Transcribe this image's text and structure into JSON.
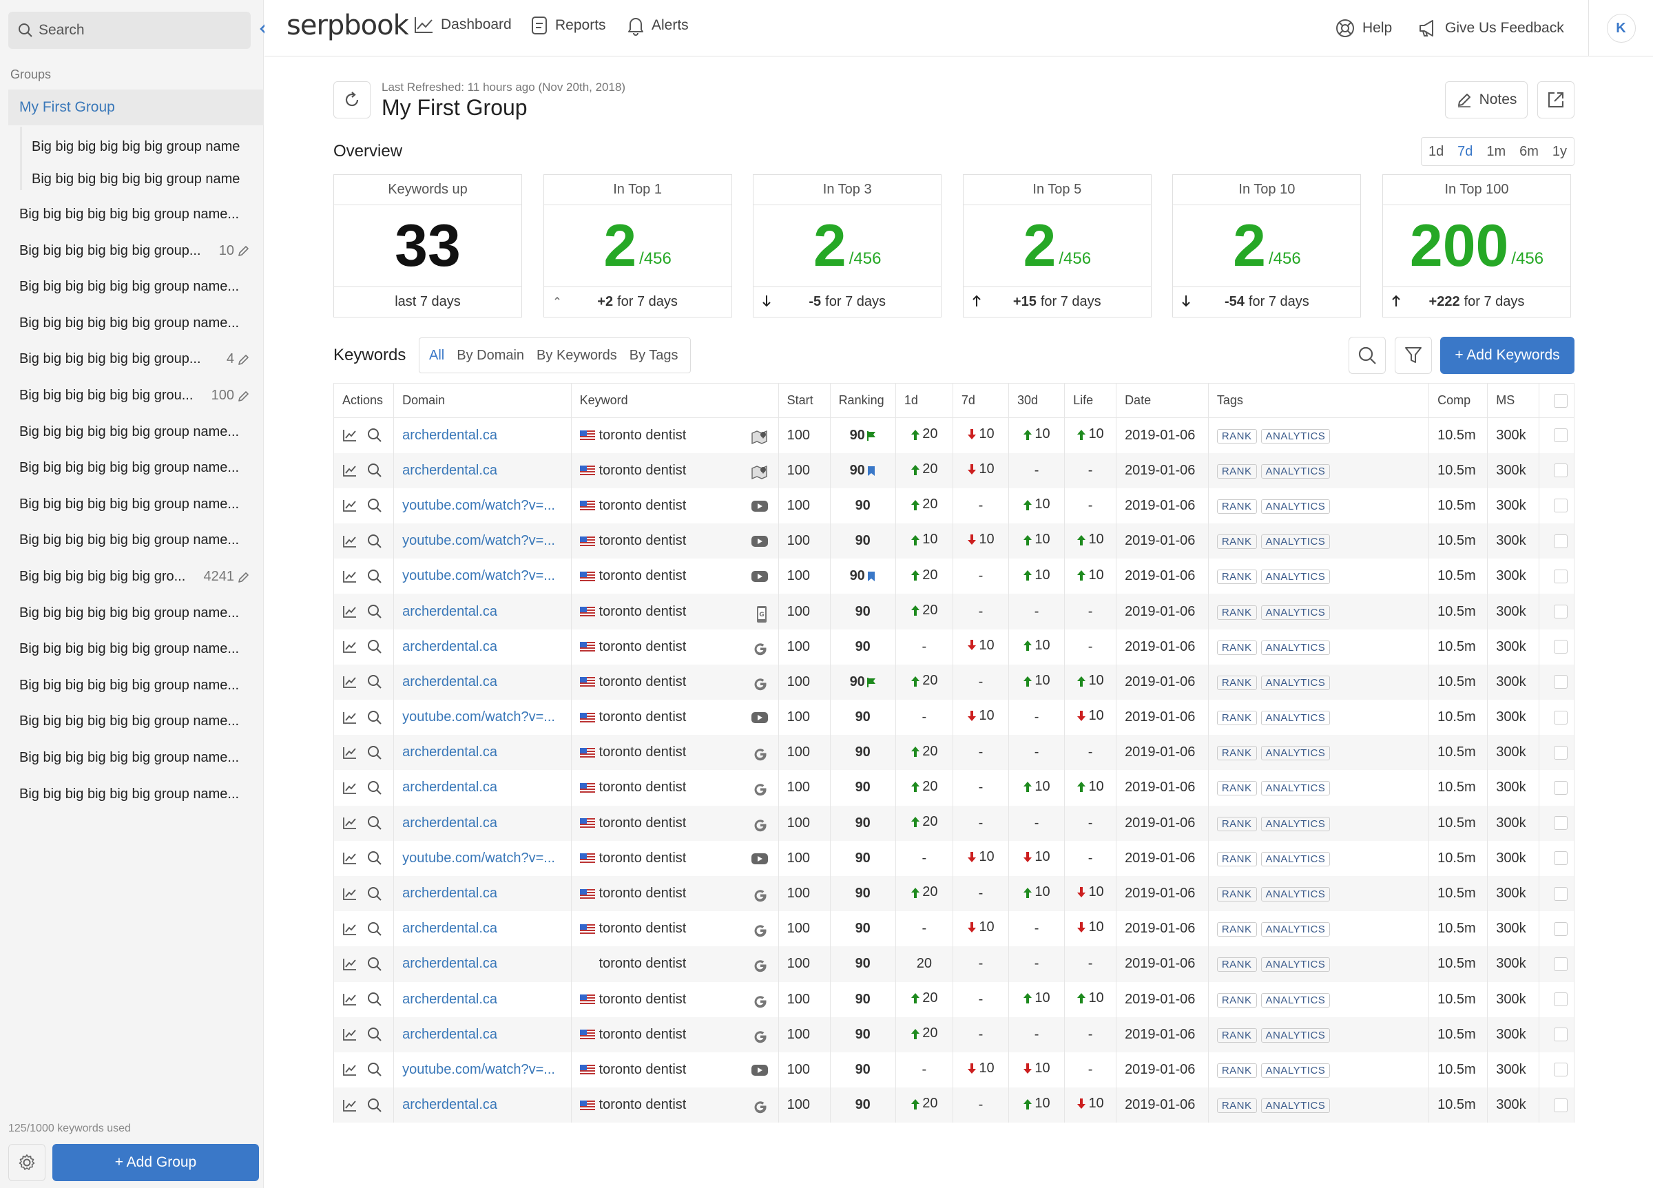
{
  "sidebar": {
    "search_placeholder": "Search",
    "groups_label": "Groups",
    "active_group": "My First Group",
    "sub_groups": [
      "Big big big big big big  group name",
      "Big big big big big big  group name"
    ],
    "groups": [
      {
        "label": "Big big big big big big  group name...",
        "count": ""
      },
      {
        "label": "Big big big big big big  group...",
        "count": "10"
      },
      {
        "label": "Big big big big big big  group name...",
        "count": ""
      },
      {
        "label": "Big big big big big big  group name...",
        "count": ""
      },
      {
        "label": "Big big big big big big  group...",
        "count": "4"
      },
      {
        "label": "Big big big big big big  grou...",
        "count": "100"
      },
      {
        "label": "Big big big big big big  group name...",
        "count": ""
      },
      {
        "label": "Big big big big big big  group name...",
        "count": ""
      },
      {
        "label": "Big big big big big big  group name...",
        "count": ""
      },
      {
        "label": "Big big big big big big  group name...",
        "count": ""
      },
      {
        "label": "Big big big big big big  gro...",
        "count": "4241"
      },
      {
        "label": "Big big big big big big  group name...",
        "count": ""
      },
      {
        "label": "Big big big big big big  group name...",
        "count": ""
      },
      {
        "label": "Big big big big big big  group name...",
        "count": ""
      },
      {
        "label": "Big big big big big big  group name...",
        "count": ""
      },
      {
        "label": "Big big big big big big  group name...",
        "count": ""
      },
      {
        "label": "Big big big big big big  group name...",
        "count": ""
      }
    ],
    "usage": "125/1000 keywords used",
    "add_group": "+ Add Group"
  },
  "topbar": {
    "logo": "serpbook",
    "nav": [
      "Dashboard",
      "Reports",
      "Alerts"
    ],
    "help": "Help",
    "feedback": "Give Us Feedback",
    "avatar": "K"
  },
  "header": {
    "last_refreshed": "Last Refreshed: 11 hours ago (Nov 20th, 2018)",
    "title": "My First Group",
    "notes": "Notes"
  },
  "overview": {
    "label": "Overview",
    "ranges": [
      "1d",
      "7d",
      "1m",
      "6m",
      "1y"
    ],
    "active_range": "7d",
    "cards": [
      {
        "title": "Keywords up",
        "value": "33",
        "total": "",
        "delta": "",
        "footer": "last 7 days",
        "arrow": "none"
      },
      {
        "title": "In Top 1",
        "value": "2",
        "total": "/456",
        "delta": "+2",
        "footer": "for 7 days",
        "arrow": "tick"
      },
      {
        "title": "In Top 3",
        "value": "2",
        "total": "/456",
        "delta": "-5",
        "footer": "for 7 days",
        "arrow": "down"
      },
      {
        "title": "In Top 5",
        "value": "2",
        "total": "/456",
        "delta": "+15",
        "footer": "for 7 days",
        "arrow": "up"
      },
      {
        "title": "In Top 10",
        "value": "2",
        "total": "/456",
        "delta": "-54",
        "footer": "for 7 days",
        "arrow": "down"
      },
      {
        "title": "In Top 100",
        "value": "200",
        "total": "/456",
        "delta": "+222",
        "footer": "for 7 days",
        "arrow": "up"
      }
    ]
  },
  "keywords": {
    "label": "Keywords",
    "tabs": [
      "All",
      "By Domain",
      "By Keywords",
      "By Tags"
    ],
    "active_tab": "All",
    "add_button": "+ Add Keywords",
    "columns": [
      "Actions",
      "Domain",
      "Keyword",
      "Start",
      "Ranking",
      "1d",
      "7d",
      "30d",
      "Life",
      "Date",
      "Tags",
      "Comp",
      "MS"
    ],
    "tags": [
      "RANK",
      "ANALYTICS"
    ],
    "rows": [
      {
        "domain": "archerdental.ca",
        "kw": "toronto dentist",
        "flag": true,
        "icon": "map",
        "start": "100",
        "rank": "90",
        "rank_icon": "flag-green",
        "d1": "20",
        "d1d": "up",
        "d7": "10",
        "d7d": "down",
        "d30": "10",
        "d30d": "up",
        "life": "10",
        "lifed": "up",
        "date": "2019-01-06",
        "comp": "10.5m",
        "ms": "300k"
      },
      {
        "domain": "archerdental.ca",
        "kw": "toronto dentist",
        "flag": true,
        "icon": "map",
        "start": "100",
        "rank": "90",
        "rank_icon": "bookmark",
        "d1": "20",
        "d1d": "up",
        "d7": "10",
        "d7d": "down",
        "d30": "-",
        "d30d": "",
        "life": "-",
        "lifed": "",
        "date": "2019-01-06",
        "comp": "10.5m",
        "ms": "300k"
      },
      {
        "domain": "youtube.com/watch?v=...",
        "kw": "toronto dentist",
        "flag": true,
        "icon": "youtube",
        "start": "100",
        "rank": "90",
        "rank_icon": "",
        "d1": "20",
        "d1d": "up",
        "d7": "-",
        "d7d": "",
        "d30": "10",
        "d30d": "up",
        "life": "-",
        "lifed": "",
        "date": "2019-01-06",
        "comp": "10.5m",
        "ms": "300k"
      },
      {
        "domain": "youtube.com/watch?v=...",
        "kw": "toronto dentist",
        "flag": true,
        "icon": "youtube",
        "start": "100",
        "rank": "90",
        "rank_icon": "",
        "d1": "10",
        "d1d": "up",
        "d7": "10",
        "d7d": "down",
        "d30": "10",
        "d30d": "up",
        "life": "10",
        "lifed": "up",
        "date": "2019-01-06",
        "comp": "10.5m",
        "ms": "300k"
      },
      {
        "domain": "youtube.com/watch?v=...",
        "kw": "toronto dentist",
        "flag": true,
        "icon": "youtube",
        "start": "100",
        "rank": "90",
        "rank_icon": "bookmark",
        "d1": "20",
        "d1d": "up",
        "d7": "-",
        "d7d": "",
        "d30": "10",
        "d30d": "up",
        "life": "10",
        "lifed": "up",
        "date": "2019-01-06",
        "comp": "10.5m",
        "ms": "300k"
      },
      {
        "domain": "archerdental.ca",
        "kw": "toronto dentist",
        "flag": true,
        "icon": "mobile",
        "start": "100",
        "rank": "90",
        "rank_icon": "",
        "d1": "20",
        "d1d": "up",
        "d7": "-",
        "d7d": "",
        "d30": "-",
        "d30d": "",
        "life": "-",
        "lifed": "",
        "date": "2019-01-06",
        "comp": "10.5m",
        "ms": "300k"
      },
      {
        "domain": "archerdental.ca",
        "kw": "toronto dentist",
        "flag": true,
        "icon": "google",
        "start": "100",
        "rank": "90",
        "rank_icon": "",
        "d1": "-",
        "d1d": "",
        "d7": "10",
        "d7d": "down",
        "d30": "10",
        "d30d": "up",
        "life": "-",
        "lifed": "",
        "date": "2019-01-06",
        "comp": "10.5m",
        "ms": "300k"
      },
      {
        "domain": "archerdental.ca",
        "kw": "toronto dentist",
        "flag": true,
        "icon": "google",
        "start": "100",
        "rank": "90",
        "rank_icon": "flag-green",
        "d1": "20",
        "d1d": "up",
        "d7": "-",
        "d7d": "",
        "d30": "10",
        "d30d": "up",
        "life": "10",
        "lifed": "up",
        "date": "2019-01-06",
        "comp": "10.5m",
        "ms": "300k"
      },
      {
        "domain": "youtube.com/watch?v=...",
        "kw": "toronto dentist",
        "flag": true,
        "icon": "youtube",
        "start": "100",
        "rank": "90",
        "rank_icon": "",
        "d1": "-",
        "d1d": "",
        "d7": "10",
        "d7d": "down",
        "d30": "-",
        "d30d": "",
        "life": "10",
        "lifed": "down",
        "date": "2019-01-06",
        "comp": "10.5m",
        "ms": "300k"
      },
      {
        "domain": "archerdental.ca",
        "kw": "toronto dentist",
        "flag": true,
        "icon": "google",
        "start": "100",
        "rank": "90",
        "rank_icon": "",
        "d1": "20",
        "d1d": "up",
        "d7": "-",
        "d7d": "",
        "d30": "-",
        "d30d": "",
        "life": "-",
        "lifed": "",
        "date": "2019-01-06",
        "comp": "10.5m",
        "ms": "300k"
      },
      {
        "domain": "archerdental.ca",
        "kw": "toronto dentist",
        "flag": true,
        "icon": "google",
        "start": "100",
        "rank": "90",
        "rank_icon": "",
        "d1": "20",
        "d1d": "up",
        "d7": "-",
        "d7d": "",
        "d30": "10",
        "d30d": "up",
        "life": "10",
        "lifed": "up",
        "date": "2019-01-06",
        "comp": "10.5m",
        "ms": "300k"
      },
      {
        "domain": "archerdental.ca",
        "kw": "toronto dentist",
        "flag": true,
        "icon": "google",
        "start": "100",
        "rank": "90",
        "rank_icon": "",
        "d1": "20",
        "d1d": "up",
        "d7": "-",
        "d7d": "",
        "d30": "-",
        "d30d": "",
        "life": "-",
        "lifed": "",
        "date": "2019-01-06",
        "comp": "10.5m",
        "ms": "300k"
      },
      {
        "domain": "youtube.com/watch?v=...",
        "kw": "toronto dentist",
        "flag": true,
        "icon": "youtube",
        "start": "100",
        "rank": "90",
        "rank_icon": "",
        "d1": "-",
        "d1d": "",
        "d7": "10",
        "d7d": "down",
        "d30": "10",
        "d30d": "down",
        "life": "-",
        "lifed": "",
        "date": "2019-01-06",
        "comp": "10.5m",
        "ms": "300k"
      },
      {
        "domain": "archerdental.ca",
        "kw": "toronto dentist",
        "flag": true,
        "icon": "google",
        "start": "100",
        "rank": "90",
        "rank_icon": "",
        "d1": "20",
        "d1d": "up",
        "d7": "-",
        "d7d": "",
        "d30": "10",
        "d30d": "up",
        "life": "10",
        "lifed": "down",
        "date": "2019-01-06",
        "comp": "10.5m",
        "ms": "300k"
      },
      {
        "domain": "archerdental.ca",
        "kw": "toronto dentist",
        "flag": true,
        "icon": "google",
        "start": "100",
        "rank": "90",
        "rank_icon": "",
        "d1": "-",
        "d1d": "",
        "d7": "10",
        "d7d": "down",
        "d30": "-",
        "d30d": "",
        "life": "10",
        "lifed": "down",
        "date": "2019-01-06",
        "comp": "10.5m",
        "ms": "300k"
      },
      {
        "domain": "archerdental.ca",
        "kw": "toronto dentist",
        "flag": false,
        "icon": "google",
        "start": "100",
        "rank": "90",
        "rank_icon": "",
        "d1": "20",
        "d1d": "",
        "d7": "-",
        "d7d": "",
        "d30": "-",
        "d30d": "",
        "life": "-",
        "lifed": "",
        "date": "2019-01-06",
        "comp": "10.5m",
        "ms": "300k"
      },
      {
        "domain": "archerdental.ca",
        "kw": "toronto dentist",
        "flag": true,
        "icon": "google",
        "start": "100",
        "rank": "90",
        "rank_icon": "",
        "d1": "20",
        "d1d": "up",
        "d7": "-",
        "d7d": "",
        "d30": "10",
        "d30d": "up",
        "life": "10",
        "lifed": "up",
        "date": "2019-01-06",
        "comp": "10.5m",
        "ms": "300k"
      },
      {
        "domain": "archerdental.ca",
        "kw": "toronto dentist",
        "flag": true,
        "icon": "google",
        "start": "100",
        "rank": "90",
        "rank_icon": "",
        "d1": "20",
        "d1d": "up",
        "d7": "-",
        "d7d": "",
        "d30": "-",
        "d30d": "",
        "life": "-",
        "lifed": "",
        "date": "2019-01-06",
        "comp": "10.5m",
        "ms": "300k"
      },
      {
        "domain": "youtube.com/watch?v=...",
        "kw": "toronto dentist",
        "flag": true,
        "icon": "youtube",
        "start": "100",
        "rank": "90",
        "rank_icon": "",
        "d1": "-",
        "d1d": "",
        "d7": "10",
        "d7d": "down",
        "d30": "10",
        "d30d": "down",
        "life": "-",
        "lifed": "",
        "date": "2019-01-06",
        "comp": "10.5m",
        "ms": "300k"
      },
      {
        "domain": "archerdental.ca",
        "kw": "toronto dentist",
        "flag": true,
        "icon": "google",
        "start": "100",
        "rank": "90",
        "rank_icon": "",
        "d1": "20",
        "d1d": "up",
        "d7": "-",
        "d7d": "",
        "d30": "10",
        "d30d": "up",
        "life": "10",
        "lifed": "down",
        "date": "2019-01-06",
        "comp": "10.5m",
        "ms": "300k"
      }
    ]
  },
  "colors": {
    "accent": "#3a78c8",
    "up": "#1e8a1e",
    "down": "#cc1f1f",
    "big_number": "#26a826"
  }
}
